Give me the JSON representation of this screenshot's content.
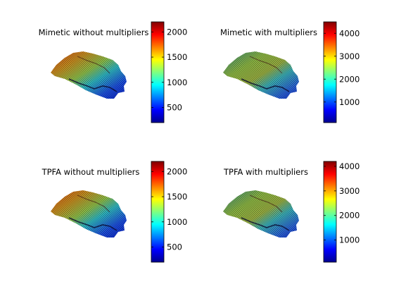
{
  "chart_data": [
    {
      "type": "heatmap",
      "title": "Mimetic without multipliers",
      "colormap": "jet",
      "colorbar": {
        "range": [
          200,
          2200
        ],
        "ticks": [
          500,
          1000,
          1500,
          2000
        ]
      }
    },
    {
      "type": "heatmap",
      "title": "Mimetic with multipliers",
      "colormap": "jet",
      "colorbar": {
        "range": [
          100,
          4500
        ],
        "ticks": [
          1000,
          2000,
          3000,
          4000
        ]
      }
    },
    {
      "type": "heatmap",
      "title": "TPFA without multipliers",
      "colormap": "jet",
      "colorbar": {
        "range": [
          200,
          2200
        ],
        "ticks": [
          500,
          1000,
          1500,
          2000
        ]
      }
    },
    {
      "type": "heatmap",
      "title": "TPFA with multipliers",
      "colormap": "jet",
      "colorbar": {
        "range": [
          100,
          4200
        ],
        "ticks": [
          1000,
          2000,
          3000,
          4000
        ]
      }
    }
  ]
}
